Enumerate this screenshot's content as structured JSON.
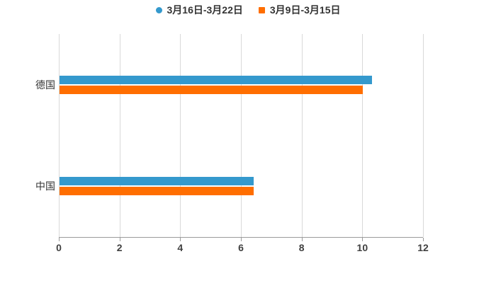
{
  "chart_data": {
    "type": "bar",
    "orientation": "horizontal",
    "title": "",
    "categories": [
      "德国",
      "中国"
    ],
    "series": [
      {
        "name": "3月16日-3月22日",
        "marker": "circle",
        "color": "#3499cd",
        "values": [
          10.3,
          6.4
        ]
      },
      {
        "name": "3月9日-3月15日",
        "marker": "square",
        "color": "#ff6e00",
        "values": [
          10.0,
          6.4
        ]
      }
    ],
    "xlabel": "",
    "ylabel": "",
    "xlim": [
      0,
      12
    ],
    "xticks": [
      0,
      2,
      4,
      6,
      8,
      10,
      12
    ],
    "grid": true,
    "legend_position": "top"
  },
  "colors": {
    "background": "#ffffff",
    "gridline": "#d9d9d9",
    "axis_line": "#9a9a9a",
    "tick_label": "#404040",
    "category_label": "#333333",
    "legend_text": "#333333"
  }
}
